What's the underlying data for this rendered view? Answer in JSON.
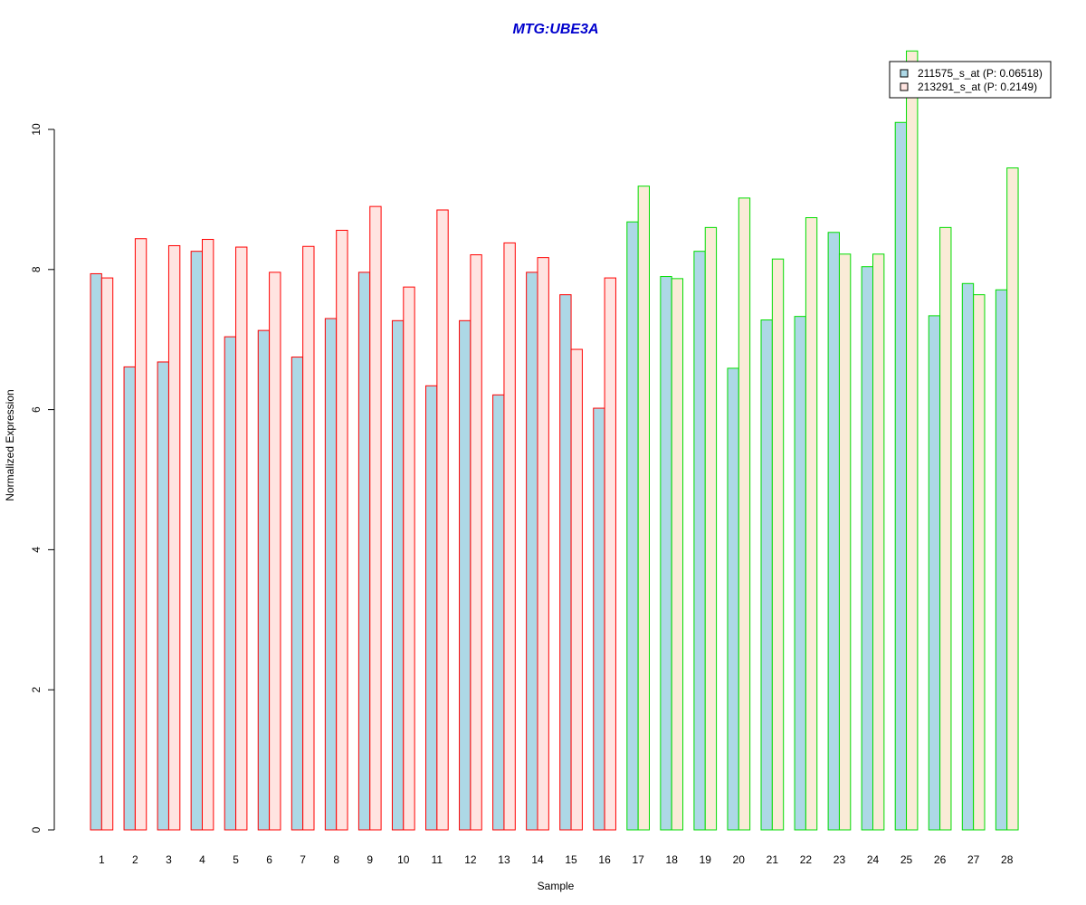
{
  "chart_data": {
    "type": "bar",
    "title": "MTG:UBE3A",
    "xlabel": "Sample",
    "ylabel": "Normalized Expression",
    "ylim": [
      0,
      11.2
    ],
    "y_ticks": [
      0,
      2,
      4,
      6,
      8,
      10
    ],
    "grid": false,
    "legend_position": "top-right",
    "categories": [
      "1",
      "2",
      "3",
      "4",
      "5",
      "6",
      "7",
      "8",
      "9",
      "10",
      "11",
      "12",
      "13",
      "14",
      "15",
      "16",
      "17",
      "18",
      "19",
      "20",
      "21",
      "22",
      "23",
      "24",
      "25",
      "26",
      "27",
      "28"
    ],
    "series": [
      {
        "name": "211575_s_at (P: 0.06518)",
        "fill": "#add8e6",
        "values": [
          7.94,
          6.61,
          6.68,
          8.26,
          7.04,
          7.13,
          6.75,
          7.3,
          7.96,
          7.27,
          6.34,
          7.27,
          6.21,
          7.96,
          7.64,
          6.02,
          8.68,
          7.9,
          8.26,
          6.59,
          7.28,
          7.33,
          8.53,
          8.04,
          10.1,
          7.34,
          7.8,
          7.71
        ]
      },
      {
        "name": "213291_s_at (P: 0.2149)",
        "fill_group1": "#ffe4e1",
        "fill_group2": "#faebd7",
        "values": [
          7.88,
          8.44,
          8.34,
          8.43,
          8.32,
          7.96,
          8.33,
          8.56,
          8.9,
          7.75,
          8.85,
          8.21,
          8.38,
          8.17,
          6.86,
          7.88,
          9.19,
          7.87,
          8.6,
          9.02,
          8.15,
          8.74,
          8.22,
          8.22,
          11.12,
          8.6,
          7.64,
          9.45
        ]
      }
    ],
    "group_outline_colors": [
      "#ff0000",
      "#00dd00"
    ],
    "group_assignment": [
      0,
      0,
      0,
      0,
      0,
      0,
      0,
      0,
      0,
      0,
      0,
      0,
      0,
      0,
      0,
      0,
      1,
      1,
      1,
      1,
      1,
      1,
      1,
      1,
      1,
      1,
      1,
      1
    ],
    "title_color": "#0000cd"
  }
}
